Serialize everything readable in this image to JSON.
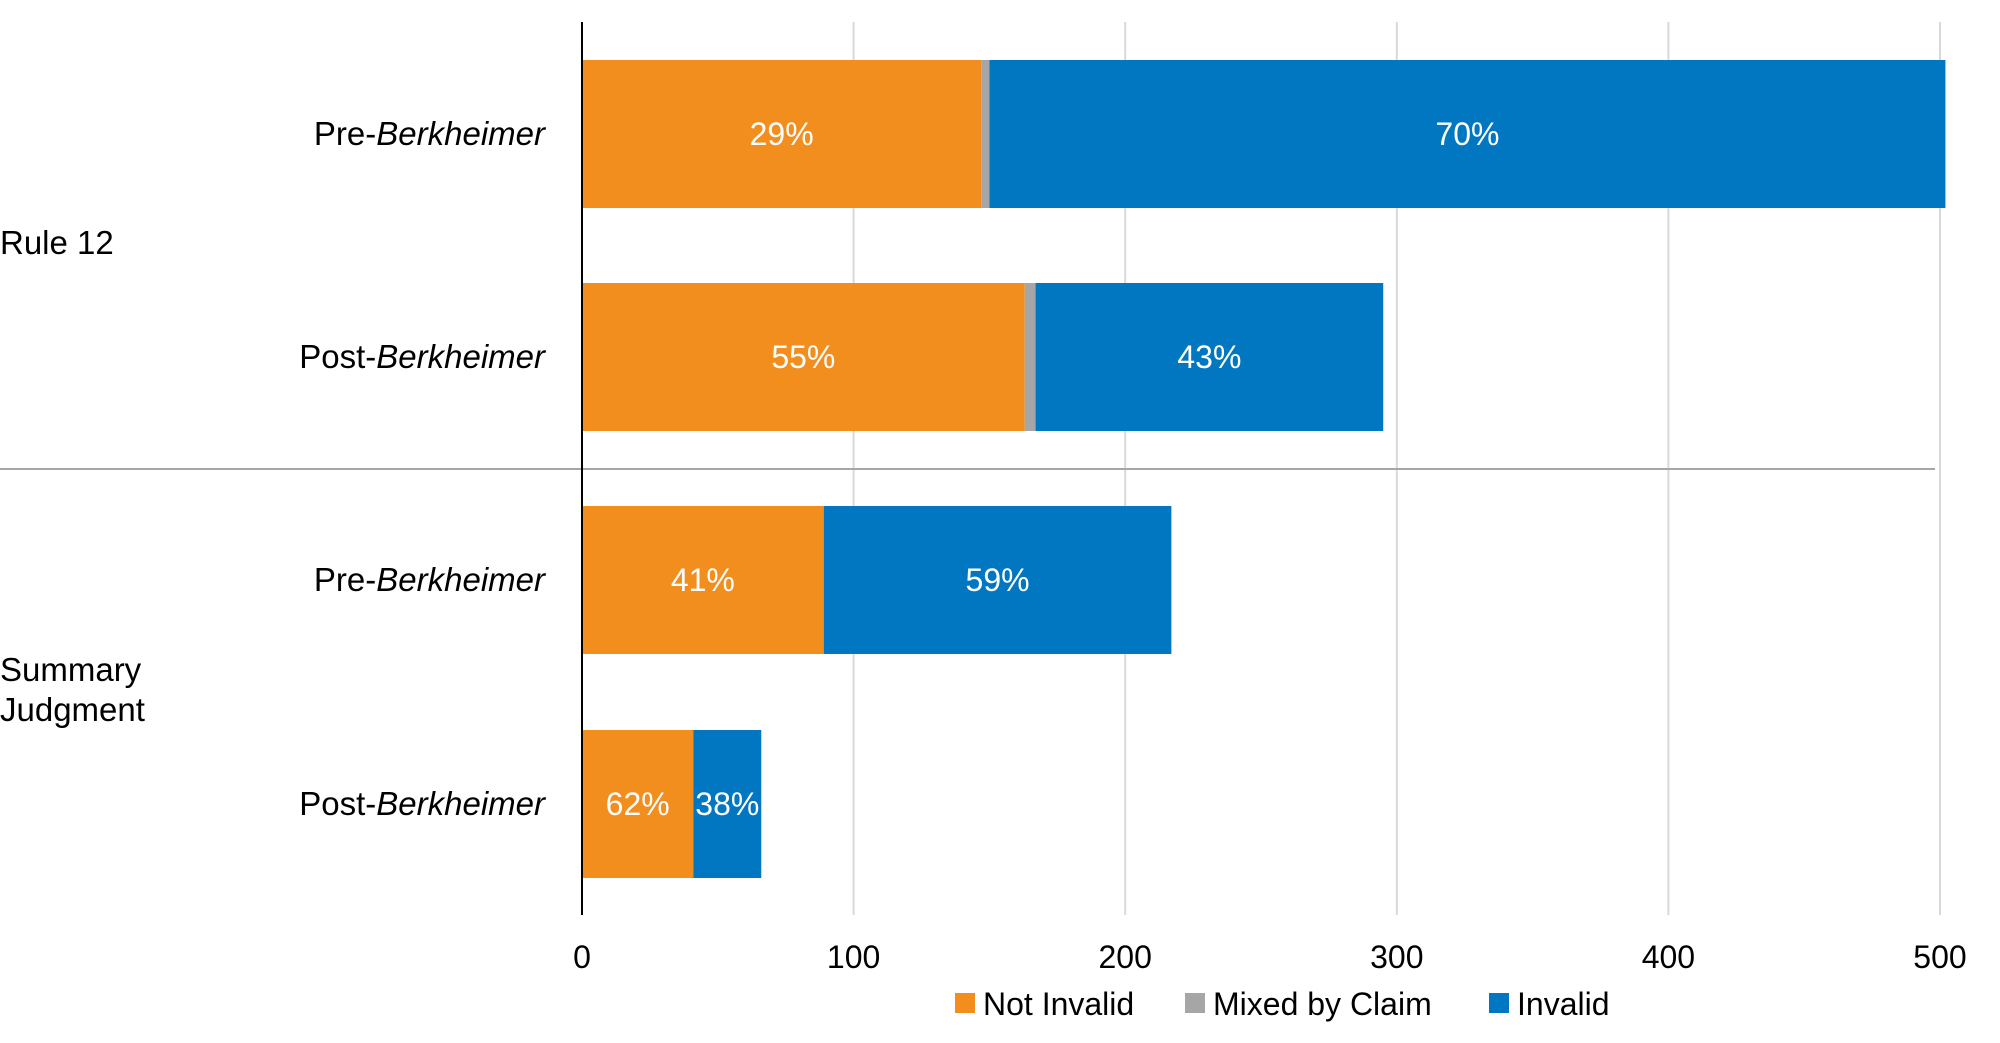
{
  "chart_data": {
    "type": "bar",
    "orientation": "horizontal",
    "stacked": true,
    "groups": [
      {
        "label_lines": [
          "Rule 12"
        ],
        "bars": [
          {
            "label_prefix": "Pre-",
            "label_italic": "Berkheimer",
            "values": {
              "Not Invalid": 147,
              "Mixed by Claim": 3,
              "Invalid": 352
            },
            "labels": {
              "Not Invalid": "29%",
              "Invalid": "70%"
            }
          },
          {
            "label_prefix": "Post-",
            "label_italic": "Berkheimer",
            "values": {
              "Not Invalid": 163,
              "Mixed by Claim": 4,
              "Invalid": 128
            },
            "labels": {
              "Not Invalid": "55%",
              "Invalid": "43%"
            }
          }
        ]
      },
      {
        "label_lines": [
          "Summary",
          "Judgment"
        ],
        "bars": [
          {
            "label_prefix": "Pre-",
            "label_italic": "Berkheimer",
            "values": {
              "Not Invalid": 89,
              "Mixed by Claim": 0,
              "Invalid": 128
            },
            "labels": {
              "Not Invalid": "41%",
              "Invalid": "59%"
            }
          },
          {
            "label_prefix": "Post-",
            "label_italic": "Berkheimer",
            "values": {
              "Not Invalid": 41,
              "Mixed by Claim": 0,
              "Invalid": 25
            },
            "labels": {
              "Not Invalid": "62%",
              "Invalid": "38%"
            }
          }
        ]
      }
    ],
    "series": [
      {
        "name": "Not Invalid",
        "color": "#f28e1e"
      },
      {
        "name": "Mixed by Claim",
        "color": "#a6a6a6"
      },
      {
        "name": "Invalid",
        "color": "#0177c1"
      }
    ],
    "xlim": [
      0,
      500
    ],
    "xticks": [
      "0",
      "100",
      "200",
      "300",
      "400",
      "500"
    ],
    "grid": "vertical",
    "legend": "bottom"
  }
}
